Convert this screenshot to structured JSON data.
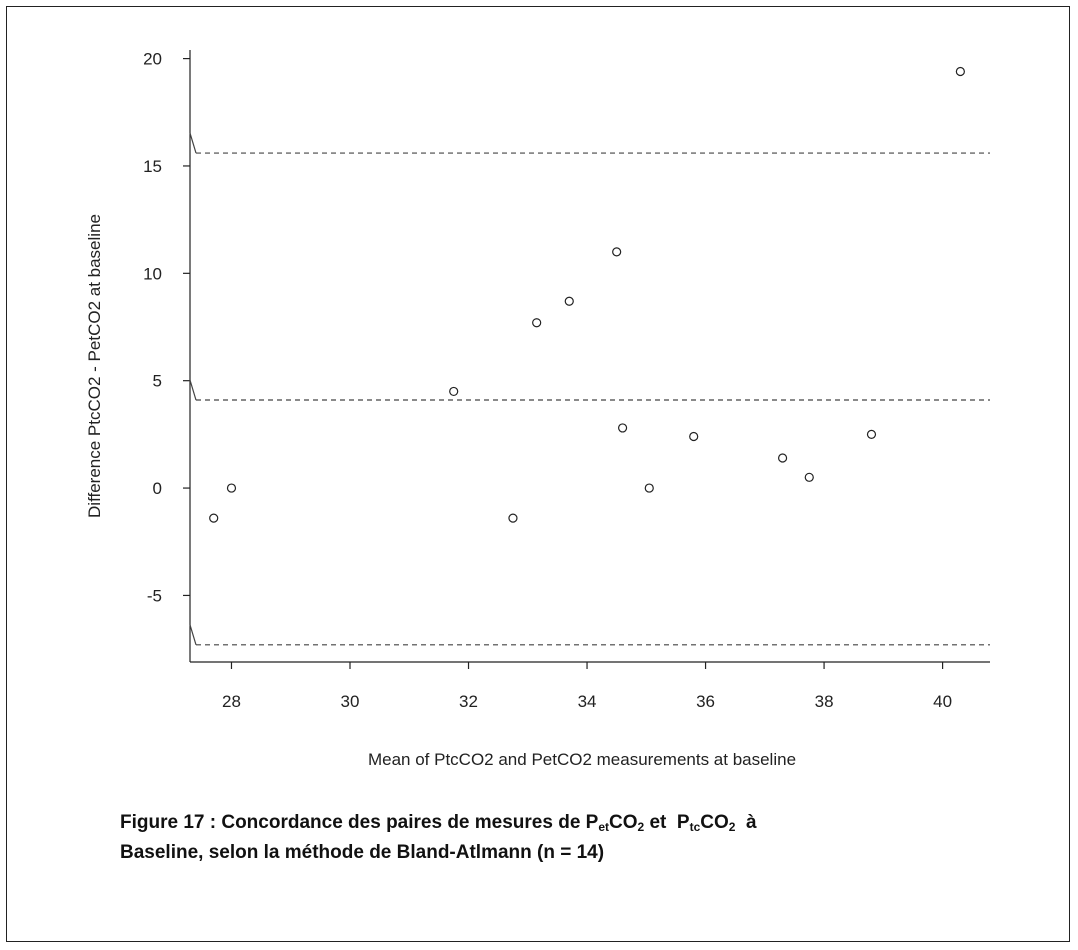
{
  "chart_data": {
    "type": "scatter",
    "title": "",
    "xlabel": "Mean of PtcCO2 and PetCO2 measurements at baseline",
    "ylabel": "Difference PtcCO2 - PetCO2 at baseline",
    "xlim": [
      27.3,
      40.8
    ],
    "ylim": [
      -8.1,
      20.4
    ],
    "x_ticks": [
      28,
      30,
      32,
      34,
      36,
      38,
      40
    ],
    "y_ticks": [
      -5,
      0,
      5,
      10,
      15,
      20
    ],
    "grid": false,
    "points": [
      {
        "x": 27.7,
        "y": -1.4
      },
      {
        "x": 28.0,
        "y": 0.0
      },
      {
        "x": 31.75,
        "y": 4.5
      },
      {
        "x": 32.75,
        "y": -1.4
      },
      {
        "x": 33.15,
        "y": 7.7
      },
      {
        "x": 33.7,
        "y": 8.7
      },
      {
        "x": 34.5,
        "y": 11.0
      },
      {
        "x": 34.6,
        "y": 2.8
      },
      {
        "x": 35.05,
        "y": 0.0
      },
      {
        "x": 35.8,
        "y": 2.4
      },
      {
        "x": 37.3,
        "y": 1.4
      },
      {
        "x": 37.75,
        "y": 0.5
      },
      {
        "x": 38.8,
        "y": 2.5
      },
      {
        "x": 40.3,
        "y": 19.4
      }
    ],
    "reference_lines": [
      {
        "y": 15.6,
        "style": "dashed"
      },
      {
        "y": 4.1,
        "style": "dashed"
      },
      {
        "y": -7.3,
        "style": "dashed"
      }
    ]
  },
  "caption": {
    "prefix": "Figure 17 : Concordance des paires de mesures de P",
    "sub1": "et",
    "mid1": "CO",
    "sub2": "2",
    "mid2": " et  P",
    "sub3": "tc",
    "mid3": "CO",
    "sub4": "2",
    "suffix1": "  à",
    "line2": "Baseline, selon la méthode de Bland-Atlmann (n = 14)"
  }
}
